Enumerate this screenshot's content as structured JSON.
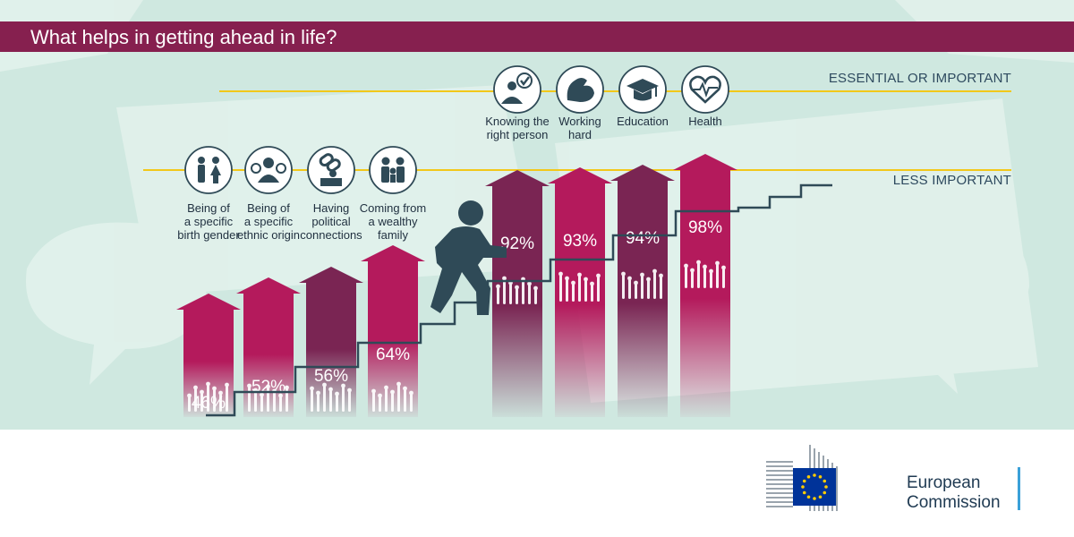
{
  "title": "What helps in getting ahead in life?",
  "colors": {
    "title_bar": "#86204f",
    "bg": "#cfe8e0",
    "arrow_magenta": "#b41a5c",
    "arrow_plum": "#7a2553",
    "stairs": "#2f4a57",
    "threshold_line": "#f2c81a",
    "figure": "#2f4a57",
    "eu_blue": "#003399",
    "eu_star": "#ffcc00"
  },
  "levels": {
    "essential": "ESSENTIAL OR IMPORTANT",
    "less": "LESS IMPORTANT"
  },
  "chart_data": {
    "type": "bar",
    "title": "What helps in getting ahead in life?",
    "categories": [
      "Being of a specific birth gender",
      "Being of a specific ethnic origin",
      "Having political connections",
      "Coming from a wealthy family",
      "Knowing the right person",
      "Working hard",
      "Education",
      "Health"
    ],
    "values": [
      46,
      52,
      56,
      64,
      92,
      93,
      94,
      98
    ],
    "unit": "%",
    "ylim": [
      0,
      100
    ],
    "items": [
      {
        "label_lines": [
          "Being of",
          "a specific",
          "birth gender"
        ],
        "value_label": "46%",
        "icon": "gender-icon",
        "group": "less",
        "tone": "magenta"
      },
      {
        "label_lines": [
          "Being of",
          "a specific",
          "ethnic origin"
        ],
        "value_label": "52%",
        "icon": "ethnic-origin-icon",
        "group": "less",
        "tone": "magenta"
      },
      {
        "label_lines": [
          "Having",
          "political",
          "connections"
        ],
        "value_label": "56%",
        "icon": "political-connections-icon",
        "group": "less",
        "tone": "plum"
      },
      {
        "label_lines": [
          "Coming from",
          "a wealthy",
          "family"
        ],
        "value_label": "64%",
        "icon": "wealthy-family-icon",
        "group": "less",
        "tone": "magenta"
      },
      {
        "label_lines": [
          "Knowing the",
          "right person"
        ],
        "value_label": "92%",
        "icon": "right-person-icon",
        "group": "essential",
        "tone": "plum"
      },
      {
        "label_lines": [
          "Working",
          "hard"
        ],
        "value_label": "93%",
        "icon": "working-hard-icon",
        "group": "essential",
        "tone": "magenta"
      },
      {
        "label_lines": [
          "Education"
        ],
        "value_label": "94%",
        "icon": "education-icon",
        "group": "essential",
        "tone": "plum"
      },
      {
        "label_lines": [
          "Health"
        ],
        "value_label": "98%",
        "icon": "health-icon",
        "group": "essential",
        "tone": "magenta"
      }
    ]
  },
  "footer": {
    "org_line1": "European",
    "org_line2": "Commission"
  }
}
